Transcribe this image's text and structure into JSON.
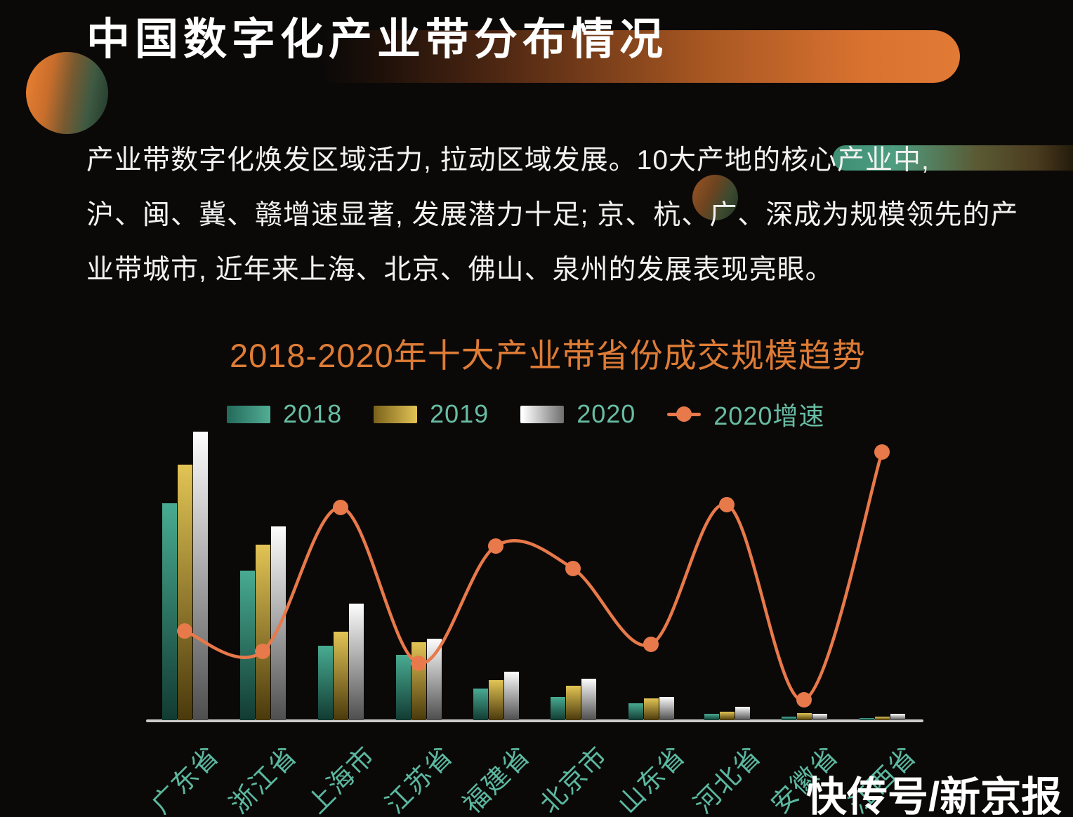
{
  "page": {
    "background": "#0B0908"
  },
  "header": {
    "title": "中国数字化产业带分布情况",
    "accent_pill_color": "#E07A35",
    "circle_gradient": [
      "#E47C30",
      "#2A4232"
    ]
  },
  "intro": {
    "lines": [
      "产业带数字化焕发区域活力, 拉动区域发展。10大产地的核心产业中,",
      "沪、闽、冀、赣增速显著, 发展潜力十足; 京、杭、广、深成为规模领先的产",
      "业带城市, 近年来上海、北京、佛山、泉州的发展表现亮眼。"
    ]
  },
  "chart": {
    "title": "2018-2020年十大产业带省份成交规模趋势",
    "title_color": "#DE7C36",
    "legend": [
      {
        "label": "2018",
        "swatch": "teal-gradient"
      },
      {
        "label": "2019",
        "swatch": "gold-gradient"
      },
      {
        "label": "2020",
        "swatch": "silver-gradient"
      },
      {
        "label": "2020增速",
        "swatch": "orange-line-dot"
      }
    ],
    "colors": {
      "bar_2018_top": "#48AB92",
      "bar_2018_bottom": "#123B32",
      "bar_2019_top": "#E2C455",
      "bar_2019_bottom": "#4A390C",
      "bar_2020_top": "#FDFDFD",
      "bar_2020_bottom": "#4E4E4E",
      "growth_line": "#E8794A",
      "axis": "#CBCBCB",
      "axis_label_text": "#5CB8A0",
      "legend_text": "#68BCA4"
    }
  },
  "chart_data": {
    "type": "bar",
    "title": "2018-2020年十大产业带省份成交规模趋势",
    "categories": [
      "广东省",
      "浙江省",
      "上海市",
      "江苏省",
      "福建省",
      "北京市",
      "山东省",
      "河北省",
      "安徽省",
      "江西省"
    ],
    "series": [
      {
        "name": "2018",
        "type": "bar",
        "values": [
          309,
          213,
          106,
          93,
          45,
          33,
          24,
          9,
          5,
          3
        ]
      },
      {
        "name": "2019",
        "type": "bar",
        "values": [
          364,
          250,
          126,
          111,
          57,
          49,
          31,
          12,
          10,
          5
        ]
      },
      {
        "name": "2020",
        "type": "bar",
        "values": [
          411,
          276,
          166,
          116,
          69,
          59,
          33,
          19,
          9,
          9
        ]
      },
      {
        "name": "2020增速",
        "type": "line",
        "values": [
          127,
          98,
          303,
          81,
          248,
          216,
          108,
          307,
          29,
          382
        ]
      }
    ],
    "value_units": "relative scale — the chart displays no numeric value axis",
    "xlabel": "",
    "ylabel": "",
    "grid": false,
    "legend_position": "top"
  },
  "watermark": {
    "text": "快传号/新京报"
  }
}
